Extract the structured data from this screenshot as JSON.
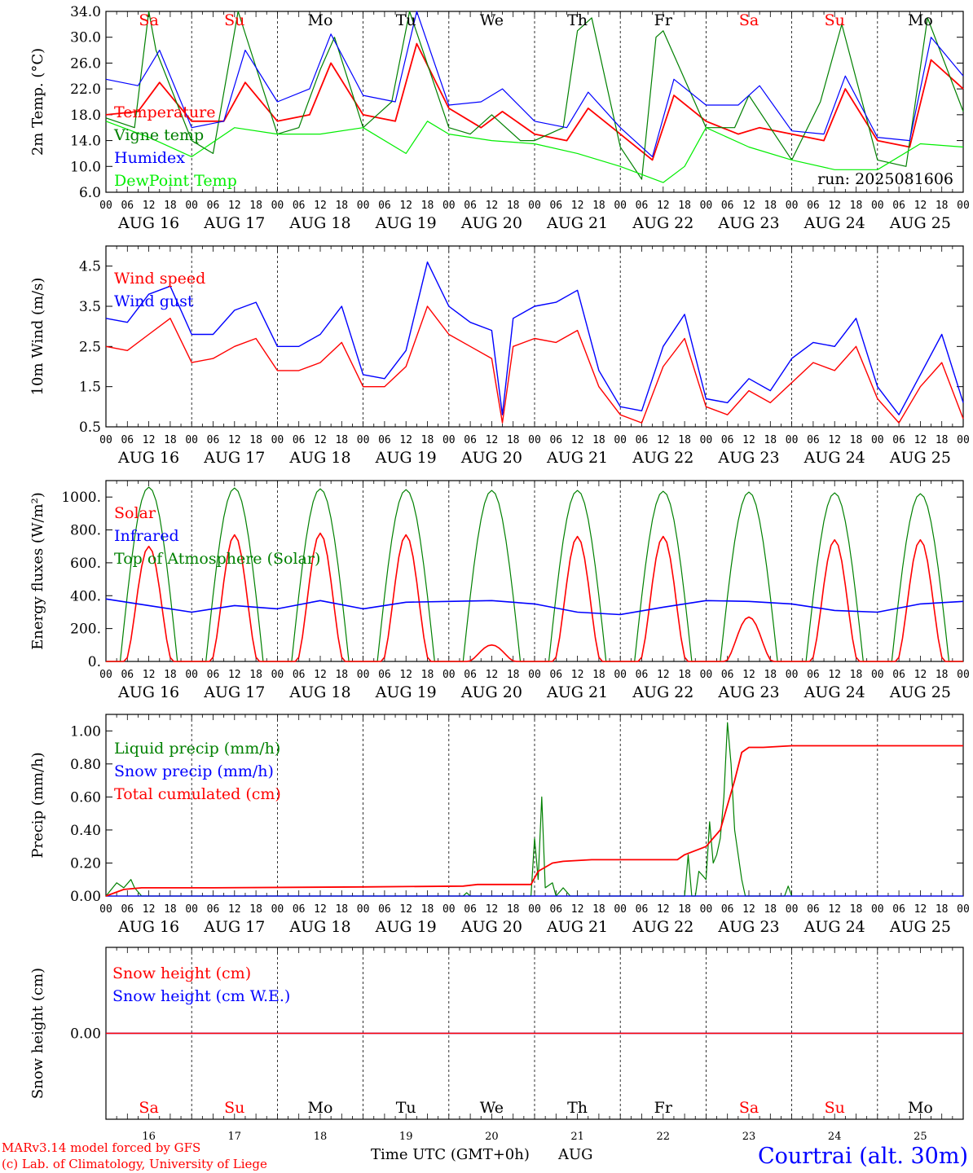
{
  "colors": {
    "red": "#ff0000",
    "green": "#008000",
    "blue": "#0000ff",
    "light_green": "#00ee00",
    "axis": "#000000"
  },
  "days": {
    "names": [
      "Sa",
      "Su",
      "Mo",
      "Tu",
      "We",
      "Th",
      "Fr",
      "Sa",
      "Su",
      "Mo"
    ],
    "weekend_flags": [
      true,
      true,
      false,
      false,
      false,
      false,
      false,
      true,
      true,
      false
    ],
    "dates": [
      "AUG 16",
      "AUG 17",
      "AUG 18",
      "AUG 19",
      "AUG 20",
      "AUG 21",
      "AUG 22",
      "AUG 23",
      "AUG 24",
      "AUG 25"
    ],
    "short_dates": [
      "16",
      "17",
      "18",
      "19",
      "20",
      "21",
      "22",
      "23",
      "24",
      "25"
    ],
    "hour_labels": [
      "00",
      "06",
      "12",
      "18"
    ],
    "final_hour_label": "00"
  },
  "footer": {
    "model": "MARv3.14 model forced by GFS",
    "copyright": "(c) Lab. of Climatology, University of Liege",
    "xlabel": "Time UTC (GMT+0h)",
    "month": "AUG",
    "station": "Courtrai (alt. 30m)"
  },
  "chart_data": [
    {
      "type": "line",
      "ylabel": "2m Temp. (°C)",
      "ylim": [
        6,
        34
      ],
      "yticks": [
        "6.0",
        "10.0",
        "14.0",
        "18.0",
        "22.0",
        "26.0",
        "30.0",
        "34.0"
      ],
      "annotation": "run: 2025081606",
      "x_unit": "hours since AUG 16 00 UTC",
      "series": [
        {
          "name": "Temperature",
          "color": "#ff0000",
          "x": [
            0,
            9,
            15,
            24,
            33,
            39,
            48,
            57,
            63,
            72,
            81,
            87,
            96,
            105,
            111,
            120,
            129,
            135,
            144,
            153,
            159,
            168,
            177,
            183,
            192,
            201,
            207,
            216,
            225,
            231,
            240
          ],
          "values": [
            18,
            18.5,
            23,
            17,
            17,
            23,
            17,
            18,
            26,
            18,
            17,
            29,
            19,
            16,
            18.5,
            15,
            14,
            19,
            15,
            11,
            21,
            17,
            15,
            16,
            15,
            14,
            22,
            14,
            13,
            26.5,
            22
          ]
        },
        {
          "name": "Vigne temp",
          "color": "#008000",
          "x": [
            0,
            8,
            12,
            14,
            24,
            30,
            37,
            48,
            54,
            60,
            64,
            72,
            80,
            85,
            96,
            102,
            108,
            116,
            120,
            128,
            132,
            136,
            144,
            150,
            154,
            156,
            168,
            176,
            180,
            192,
            200,
            206,
            216,
            224,
            230,
            240
          ],
          "values": [
            17.5,
            16,
            34,
            28,
            14,
            12,
            34,
            15,
            16,
            25,
            30,
            16,
            20,
            34,
            16,
            15,
            18,
            14,
            14,
            16,
            31,
            33,
            13,
            8,
            30,
            31,
            16,
            16,
            21,
            11,
            20,
            32,
            11,
            10,
            33,
            18.5
          ]
        },
        {
          "name": "Humidex",
          "color": "#0000ff",
          "x": [
            0,
            9,
            15,
            24,
            33,
            39,
            48,
            57,
            63,
            72,
            81,
            87,
            96,
            105,
            111,
            120,
            129,
            135,
            144,
            153,
            159,
            168,
            177,
            183,
            192,
            201,
            207,
            216,
            225,
            231,
            240
          ],
          "values": [
            23.5,
            22.5,
            28,
            16,
            17,
            28,
            20,
            22,
            30.5,
            21,
            20,
            34,
            19.5,
            20,
            22,
            17,
            16,
            21.5,
            16,
            11.5,
            23.5,
            19.5,
            19.5,
            22.5,
            15.5,
            15,
            24,
            14.5,
            14,
            30,
            24
          ]
        },
        {
          "name": "DewPoint Temp",
          "color": "#00ee00",
          "x": [
            0,
            12,
            24,
            36,
            48,
            60,
            72,
            84,
            90,
            96,
            108,
            120,
            132,
            144,
            156,
            162,
            168,
            180,
            192,
            204,
            216,
            228,
            240
          ],
          "values": [
            17,
            14.5,
            11.5,
            16,
            15,
            15,
            16,
            12,
            17,
            15,
            14,
            13.5,
            12,
            10,
            7.5,
            10,
            16,
            13,
            11,
            9.5,
            9.5,
            13.5,
            13
          ]
        }
      ]
    },
    {
      "type": "line",
      "ylabel": "10m Wind (m/s)",
      "ylim": [
        0.5,
        5
      ],
      "yticks": [
        "0.5",
        "1.5",
        "2.5",
        "3.5",
        "4.5"
      ],
      "x_unit": "hours since AUG 16 00 UTC",
      "series": [
        {
          "name": "Wind speed",
          "color": "#ff0000",
          "x": [
            0,
            6,
            12,
            18,
            24,
            30,
            36,
            42,
            48,
            54,
            60,
            66,
            72,
            78,
            84,
            90,
            96,
            102,
            108,
            111,
            114,
            120,
            126,
            132,
            138,
            144,
            150,
            156,
            162,
            168,
            174,
            180,
            186,
            192,
            198,
            204,
            210,
            216,
            222,
            228,
            234,
            240
          ],
          "values": [
            2.5,
            2.4,
            2.8,
            3.2,
            2.1,
            2.2,
            2.5,
            2.7,
            1.9,
            1.9,
            2.1,
            2.6,
            1.5,
            1.5,
            2,
            3.5,
            2.8,
            2.5,
            2.2,
            0.6,
            2.5,
            2.7,
            2.6,
            2.9,
            1.5,
            0.8,
            0.6,
            2,
            2.7,
            1,
            0.8,
            1.4,
            1.1,
            1.6,
            2.1,
            1.9,
            2.5,
            1.2,
            0.6,
            1.5,
            2.1,
            0.7
          ]
        },
        {
          "name": "Wind gust",
          "color": "#0000ff",
          "x": [
            0,
            6,
            12,
            18,
            24,
            30,
            36,
            42,
            48,
            54,
            60,
            66,
            72,
            78,
            84,
            90,
            96,
            102,
            108,
            111,
            114,
            120,
            126,
            132,
            138,
            144,
            150,
            156,
            162,
            168,
            174,
            180,
            186,
            192,
            198,
            204,
            210,
            216,
            222,
            228,
            234,
            240
          ],
          "values": [
            3.2,
            3.1,
            3.8,
            4,
            2.8,
            2.8,
            3.4,
            3.6,
            2.5,
            2.5,
            2.8,
            3.5,
            1.8,
            1.7,
            2.4,
            4.6,
            3.5,
            3.1,
            2.9,
            0.8,
            3.2,
            3.5,
            3.6,
            3.9,
            1.9,
            1,
            0.9,
            2.5,
            3.3,
            1.2,
            1.1,
            1.7,
            1.4,
            2.2,
            2.6,
            2.5,
            3.2,
            1.5,
            0.8,
            1.8,
            2.8,
            1.1
          ]
        }
      ]
    },
    {
      "type": "line",
      "ylabel": "Energy fluxes (W/m²)",
      "ylim": [
        0,
        1100
      ],
      "yticks": [
        "0.",
        "200.",
        "400.",
        "600.",
        "800.",
        "1000."
      ],
      "x_unit": "hours since AUG 16 00 UTC",
      "daily_peak_top_of_atmosphere": [
        1060,
        1055,
        1050,
        1045,
        1040,
        1040,
        1035,
        1030,
        1025,
        1020
      ],
      "daily_peak_solar": [
        700,
        770,
        780,
        770,
        100,
        760,
        760,
        270,
        740,
        740
      ],
      "series": [
        {
          "name": "Solar",
          "color": "#ff0000"
        },
        {
          "name": "Infrared",
          "color": "#0000ff",
          "x": [
            0,
            12,
            24,
            36,
            48,
            60,
            72,
            84,
            96,
            108,
            120,
            132,
            144,
            156,
            168,
            180,
            192,
            204,
            216,
            228,
            240
          ],
          "values": [
            380,
            340,
            300,
            340,
            320,
            370,
            320,
            360,
            365,
            370,
            350,
            300,
            285,
            330,
            370,
            365,
            350,
            310,
            300,
            350,
            365
          ]
        },
        {
          "name": "Top of Atmosphere (Solar)",
          "color": "#008000"
        }
      ]
    },
    {
      "type": "line",
      "ylabel": "Precip (mm/h)",
      "ylim": [
        0,
        1.1
      ],
      "yticks": [
        "0.00",
        "0.20",
        "0.40",
        "0.60",
        "0.80",
        "1.00"
      ],
      "x_unit": "hours since AUG 16 00 UTC",
      "series": [
        {
          "name": "Liquid precip (mm/h)",
          "color": "#008000",
          "x": [
            0,
            3,
            5,
            7,
            8,
            10,
            100,
            101,
            102,
            119,
            120,
            121,
            122,
            123,
            125,
            126,
            128,
            130,
            131,
            162,
            163,
            164,
            165,
            166,
            168,
            169,
            170,
            171,
            172,
            173,
            174,
            175,
            176,
            178,
            179,
            180,
            182,
            183,
            190,
            191,
            192
          ],
          "values": [
            0,
            0.08,
            0.05,
            0.1,
            0.05,
            0,
            0,
            0.02,
            0,
            0,
            0.35,
            0.1,
            0.6,
            0.05,
            0.08,
            0,
            0.05,
            0,
            0,
            0,
            0.25,
            0,
            0,
            0.15,
            0.1,
            0.45,
            0.2,
            0.25,
            0.35,
            0.6,
            1.05,
            0.8,
            0.4,
            0.1,
            0,
            0,
            0,
            0,
            0,
            0.06,
            0
          ]
        },
        {
          "name": "Snow precip (mm/h)",
          "color": "#0000ff",
          "x": [
            0,
            240
          ],
          "values": [
            0,
            0
          ]
        },
        {
          "name": "Total cumulated (cm)",
          "color": "#ff0000",
          "x": [
            0,
            5,
            10,
            30,
            72,
            100,
            104,
            119,
            121,
            125,
            128,
            136,
            160,
            162,
            168,
            172,
            174,
            176,
            178,
            180,
            182,
            184,
            192,
            240
          ],
          "values": [
            0,
            0.04,
            0.05,
            0.05,
            0.055,
            0.06,
            0.07,
            0.07,
            0.15,
            0.2,
            0.21,
            0.22,
            0.22,
            0.25,
            0.3,
            0.4,
            0.55,
            0.7,
            0.87,
            0.9,
            0.9,
            0.9,
            0.91,
            0.91
          ]
        }
      ]
    },
    {
      "type": "line",
      "ylabel": "Snow height (cm)",
      "ylim": [
        -1,
        1
      ],
      "yticks": [
        "0.00"
      ],
      "x_unit": "hours since AUG 16 00 UTC",
      "series": [
        {
          "name": "Snow height (cm)",
          "color": "#ff0000",
          "x": [
            0,
            240
          ],
          "values": [
            0,
            0
          ]
        },
        {
          "name": "Snow height (cm W.E.)",
          "color": "#0000ff",
          "x": [
            0,
            240
          ],
          "values": [
            0,
            0
          ]
        }
      ]
    }
  ]
}
